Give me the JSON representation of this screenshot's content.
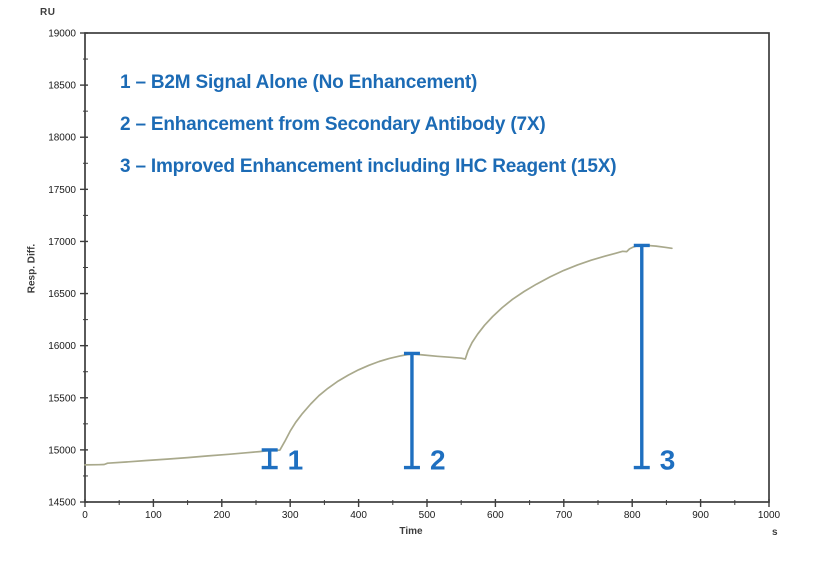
{
  "figure": {
    "y_axis_unit": "RU",
    "y_axis_label": "Resp. Diff.",
    "x_axis_label": "Time",
    "x_axis_unit": "s"
  },
  "annotations": {
    "color": "#1c6bb5",
    "lines": [
      {
        "label": "1 – B2M Signal Alone (No Enhancement)"
      },
      {
        "label": "2 – Enhancement from Secondary Antibody (7X)"
      },
      {
        "label": "3 – Improved Enhancement including IHC Reagent (15X)"
      }
    ]
  },
  "chart_data": {
    "type": "line",
    "title": "",
    "xlabel": "Time",
    "x_unit": "s",
    "ylabel": "Resp. Diff.",
    "y_unit": "RU",
    "xlim": [
      0,
      1000
    ],
    "ylim": [
      14500,
      19000
    ],
    "x_major_ticks": [
      0,
      100,
      200,
      300,
      400,
      500,
      600,
      700,
      800,
      900,
      1000
    ],
    "x_minor_step": 50,
    "y_major_ticks": [
      14500,
      15000,
      15500,
      16000,
      16500,
      17000,
      17500,
      18000,
      18500,
      19000
    ],
    "y_minor_step": 250,
    "grid": false,
    "line_color": "#a9a98c",
    "axis_color": "#3d3d3d",
    "marker_color": "#1e6fc0",
    "series": [
      {
        "name": "sensorgram",
        "points": [
          [
            0,
            14856
          ],
          [
            20,
            14858
          ],
          [
            28,
            14860
          ],
          [
            33,
            14872
          ],
          [
            60,
            14884
          ],
          [
            90,
            14898
          ],
          [
            120,
            14912
          ],
          [
            150,
            14926
          ],
          [
            180,
            14942
          ],
          [
            210,
            14958
          ],
          [
            235,
            14972
          ],
          [
            255,
            14984
          ],
          [
            268,
            14992
          ],
          [
            285,
            14998
          ],
          [
            292,
            15080
          ],
          [
            300,
            15180
          ],
          [
            308,
            15265
          ],
          [
            318,
            15350
          ],
          [
            330,
            15440
          ],
          [
            342,
            15520
          ],
          [
            355,
            15590
          ],
          [
            370,
            15660
          ],
          [
            385,
            15718
          ],
          [
            400,
            15768
          ],
          [
            415,
            15812
          ],
          [
            430,
            15848
          ],
          [
            445,
            15878
          ],
          [
            460,
            15900
          ],
          [
            472,
            15915
          ],
          [
            480,
            15920
          ],
          [
            495,
            15910
          ],
          [
            515,
            15898
          ],
          [
            535,
            15888
          ],
          [
            550,
            15880
          ],
          [
            556,
            15872
          ],
          [
            560,
            15950
          ],
          [
            566,
            16030
          ],
          [
            574,
            16110
          ],
          [
            584,
            16195
          ],
          [
            596,
            16280
          ],
          [
            610,
            16365
          ],
          [
            625,
            16445
          ],
          [
            642,
            16520
          ],
          [
            660,
            16590
          ],
          [
            680,
            16660
          ],
          [
            700,
            16722
          ],
          [
            720,
            16775
          ],
          [
            740,
            16820
          ],
          [
            760,
            16858
          ],
          [
            775,
            16885
          ],
          [
            786,
            16905
          ],
          [
            792,
            16903
          ],
          [
            796,
            16928
          ],
          [
            802,
            16948
          ],
          [
            810,
            16962
          ],
          [
            820,
            16963
          ],
          [
            835,
            16955
          ],
          [
            848,
            16944
          ],
          [
            858,
            16934
          ]
        ]
      }
    ],
    "markers": [
      {
        "label": "1",
        "time": 270,
        "ru_top": 15000,
        "ru_bottom": 14830
      },
      {
        "label": "2",
        "time": 478,
        "ru_top": 15925,
        "ru_bottom": 14830
      },
      {
        "label": "3",
        "time": 814,
        "ru_top": 16962,
        "ru_bottom": 14830
      }
    ]
  }
}
